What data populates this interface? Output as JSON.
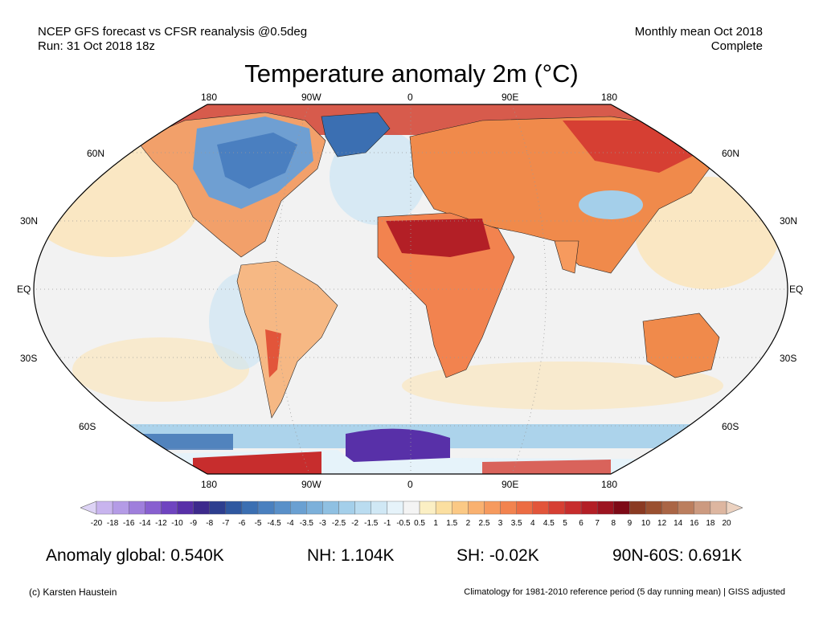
{
  "header": {
    "left_line1": "NCEP GFS forecast vs CFSR reanalysis @0.5deg",
    "left_line2": "Run: 31 Oct 2018 18z",
    "right_line1": "Monthly mean Oct 2018",
    "right_line2": "Complete"
  },
  "title": "Temperature anomaly 2m (°C)",
  "map": {
    "lon_labels_top": [
      "180",
      "90W",
      "0",
      "90E",
      "180"
    ],
    "lon_labels_bottom": [
      "180",
      "90W",
      "0",
      "90E",
      "180"
    ],
    "lat_labels_left": [
      "60N",
      "30N",
      "EQ",
      "30S",
      "60S"
    ],
    "lat_labels_right": [
      "60N",
      "30N",
      "EQ",
      "30S",
      "60S"
    ],
    "ocean_color": "#f2f2f2",
    "land_warm_color": "#f08a4b",
    "cold_color": "#4a7fc0"
  },
  "colorbar": {
    "labels": [
      "-20",
      "-18",
      "-16",
      "-14",
      "-12",
      "-10",
      "-9",
      "-8",
      "-7",
      "-6",
      "-5",
      "-4.5",
      "-4",
      "-3.5",
      "-3",
      "-2.5",
      "-2",
      "-1.5",
      "-1",
      "-0.5",
      "0.5",
      "1",
      "1.5",
      "2",
      "2.5",
      "3",
      "3.5",
      "4",
      "4.5",
      "5",
      "6",
      "7",
      "8",
      "9",
      "10",
      "12",
      "14",
      "16",
      "18",
      "20"
    ],
    "colors": [
      "#ddd3f5",
      "#c8b4ee",
      "#b49be6",
      "#9f7fdc",
      "#8860d0",
      "#6f44c0",
      "#5830a8",
      "#3d2a8c",
      "#2d3e8f",
      "#2f58a0",
      "#3b6fb2",
      "#4a80bf",
      "#5990c9",
      "#6aa0d2",
      "#7cb0da",
      "#8fc0e2",
      "#a4cfea",
      "#badcf0",
      "#d0e8f5",
      "#e6f3fa",
      "#f4f4f4",
      "#fbefc4",
      "#fbdfa0",
      "#fbc985",
      "#f9b170",
      "#f69a5e",
      "#f2834f",
      "#ec6c43",
      "#e2553a",
      "#d63f33",
      "#c72d2d",
      "#b31f26",
      "#9c1420",
      "#7d0a16",
      "#8a3a22",
      "#9a5030",
      "#aa6545",
      "#bb7e5e",
      "#cc9a80",
      "#ddb6a0",
      "#ecd2c0"
    ]
  },
  "stats": {
    "global": "Anomaly global: 0.540K",
    "nh": "NH: 1.104K",
    "sh": "SH: -0.02K",
    "polar": "90N-60S: 0.691K"
  },
  "footer": {
    "left": "(c) Karsten Haustein",
    "right": "Climatology for 1981-2010 reference period (5 day running mean) | GISS adjusted"
  }
}
